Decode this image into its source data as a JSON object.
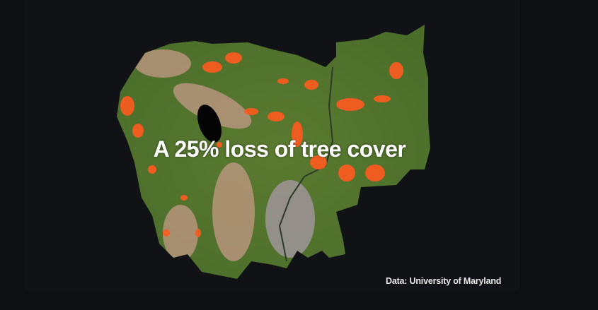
{
  "headline": "A 25% loss of tree cover",
  "credit": "Data: University of Maryland",
  "colors": {
    "background": "#0e0f13",
    "forest": "#4f7a2c",
    "tree_cover_loss": "#ff5a1f",
    "cleared_land": "#c9928a",
    "water": "#000000"
  }
}
